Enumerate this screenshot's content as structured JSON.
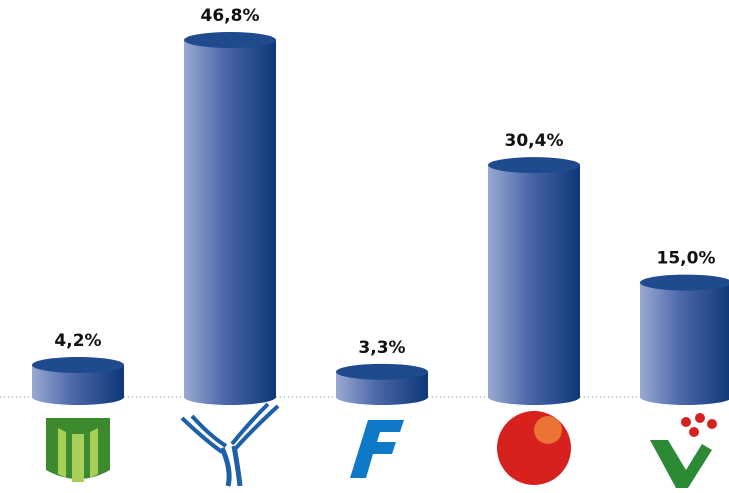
{
  "chart_data": {
    "type": "bar",
    "categories": [
      null,
      null,
      null,
      null,
      null
    ],
    "values": [
      4.2,
      46.8,
      3.3,
      30.4,
      15.0
    ],
    "value_labels": [
      "4,2%",
      "46,8%",
      "3,3%",
      "30,4%",
      "15,0%"
    ],
    "color": "#1f4a8e"
  }
}
